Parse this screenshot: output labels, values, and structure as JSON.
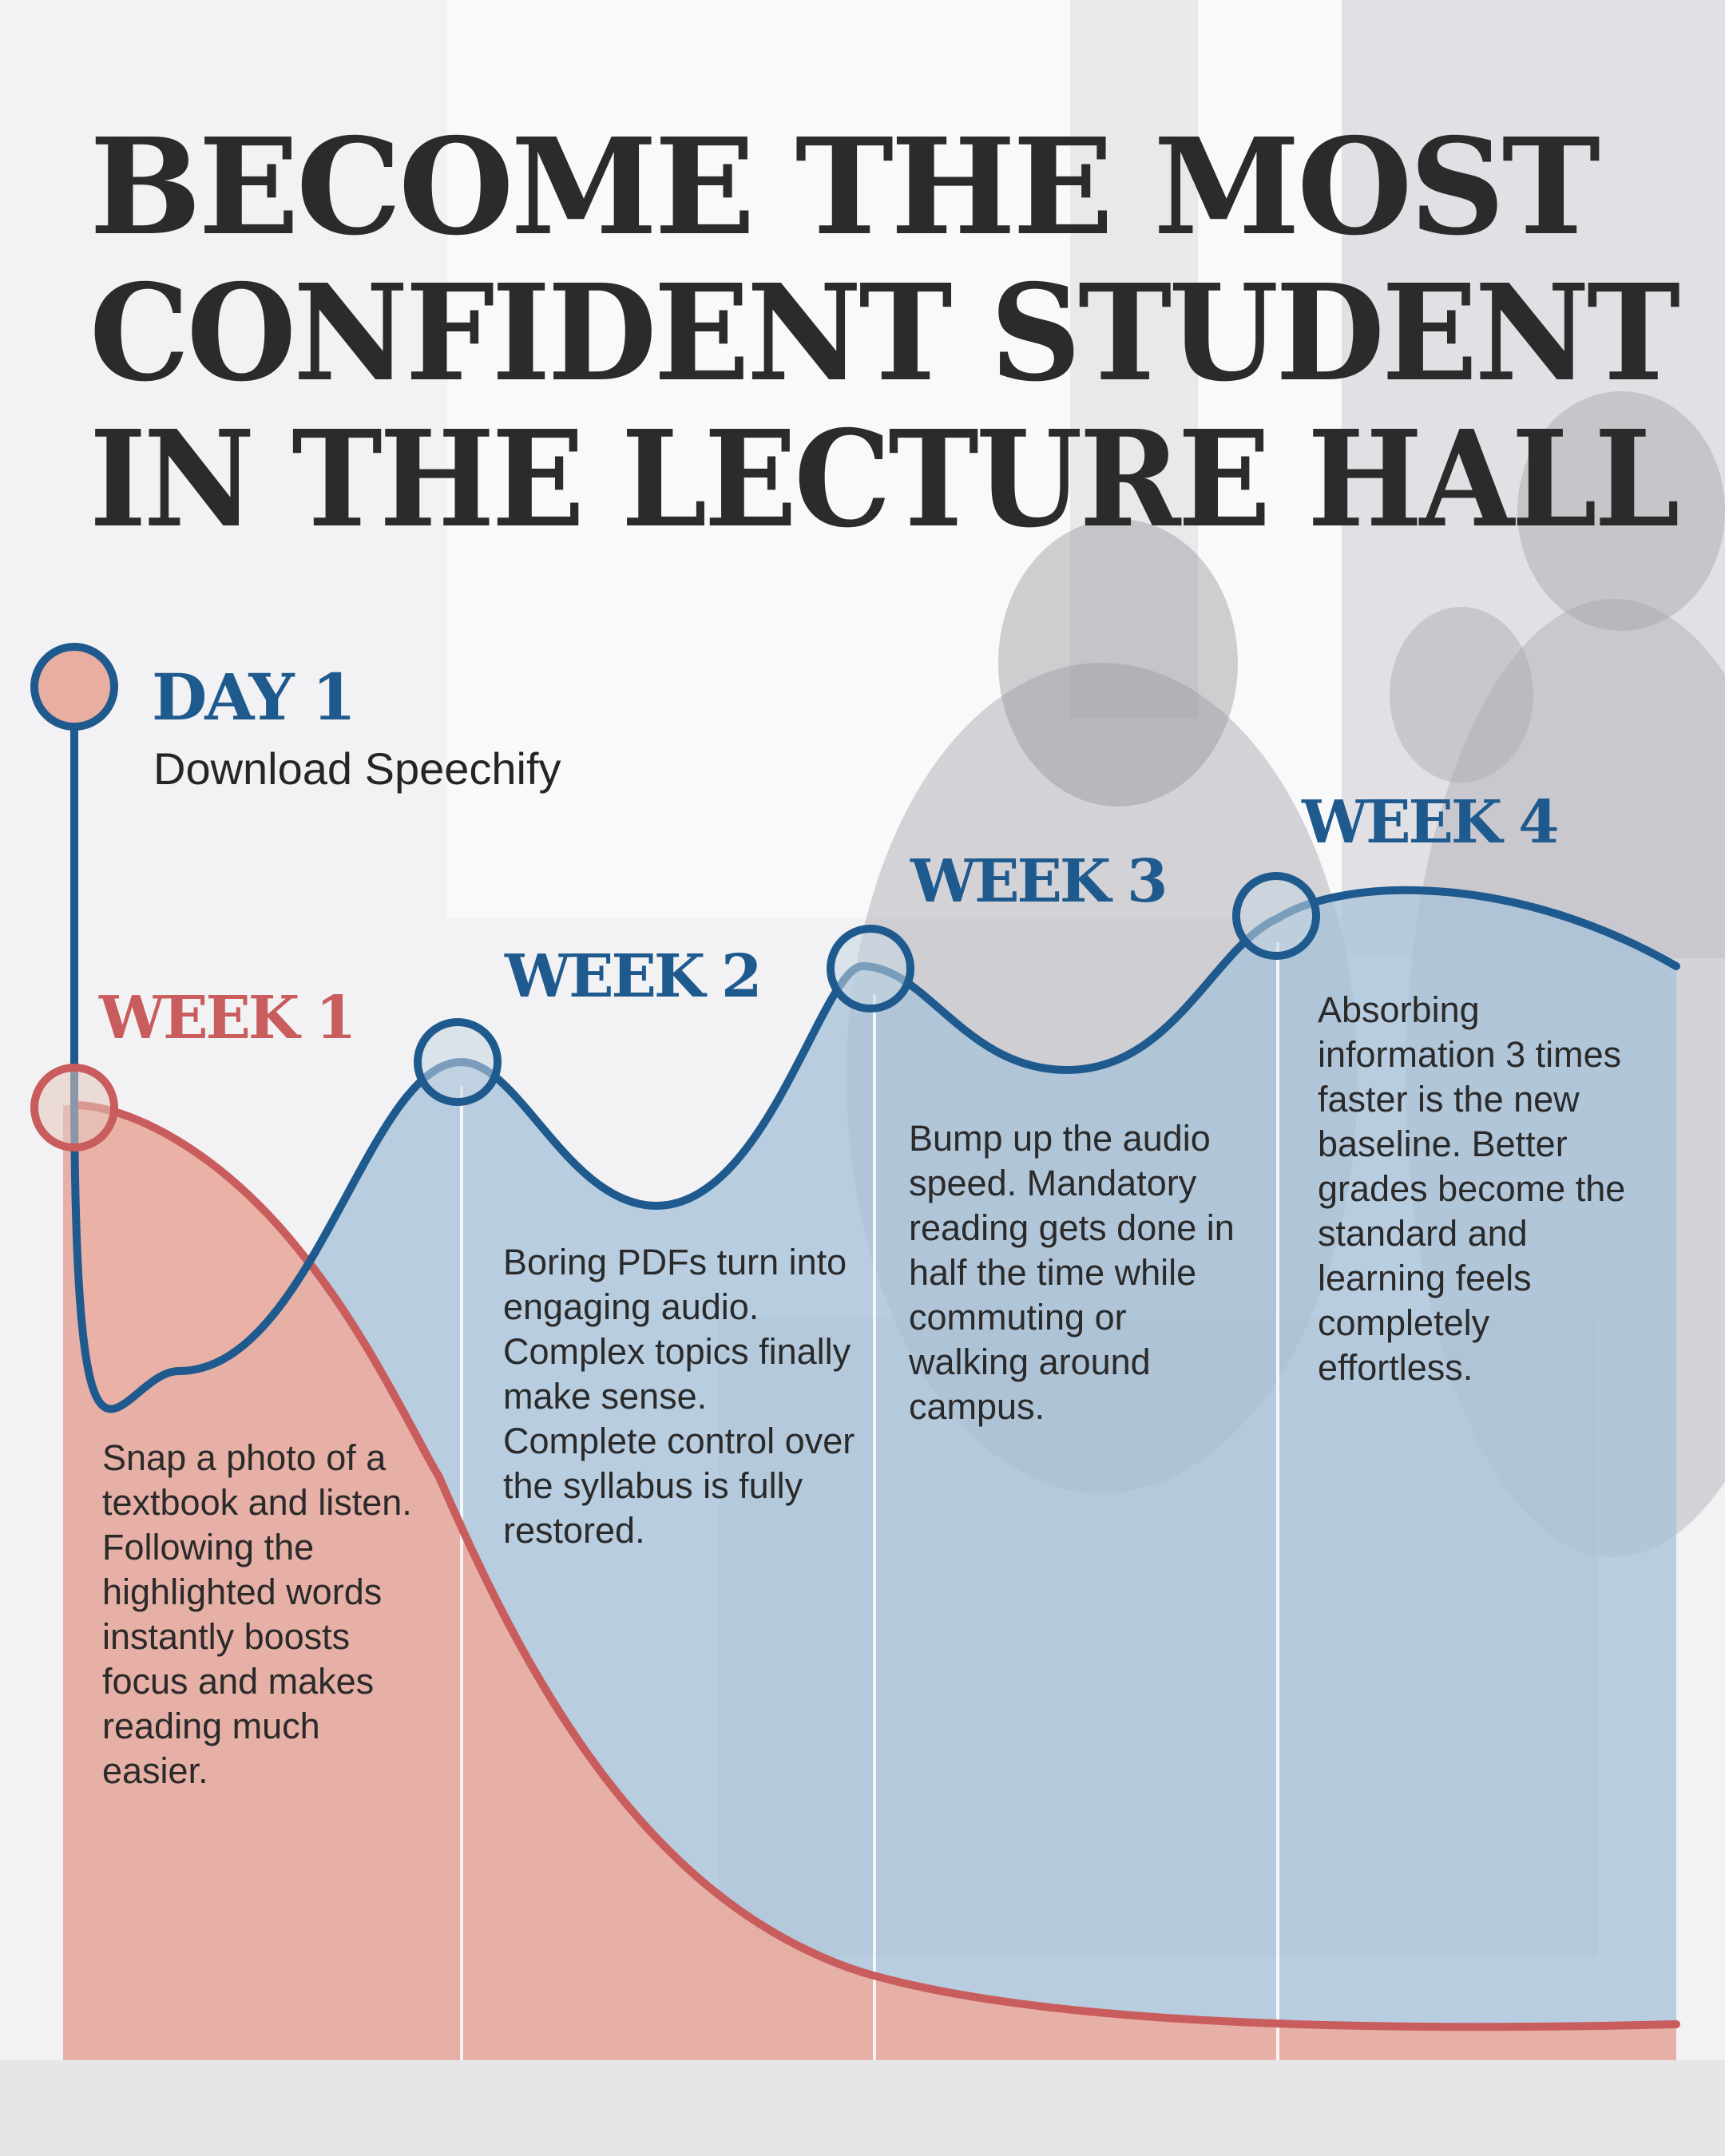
{
  "title": {
    "lines": [
      "BECOME THE MOST",
      "CONFIDENT STUDENT",
      "IN THE LECTURE HALL"
    ]
  },
  "day1": {
    "heading": "DAY 1",
    "subtitle": "Download Speechify"
  },
  "stages": [
    {
      "id": "week-1",
      "heading": "WEEK 1",
      "text": "Snap a photo of a textbook and listen. Following the highlighted words instantly boosts focus and makes reading much easier."
    },
    {
      "id": "week-2",
      "heading": "WEEK 2",
      "text": "Boring PDFs turn into engaging audio. Complex topics finally make sense. Complete control over the syllabus is fully restored."
    },
    {
      "id": "week-3",
      "heading": "WEEK 3",
      "text": "Bump up the audio speed. Mandatory reading gets done in half the time while commuting or walking around campus."
    },
    {
      "id": "week-4",
      "heading": "WEEK 4",
      "text": "Absorbing information 3 times faster is the new baseline. Better grades become the standard and learning feels completely effortless."
    }
  ],
  "colors": {
    "blue": "#1f5a8e",
    "blue_fill": "#a9c3da",
    "red": "#c95c5c",
    "red_fill": "#e9aea2",
    "title": "#2b2b2b"
  }
}
